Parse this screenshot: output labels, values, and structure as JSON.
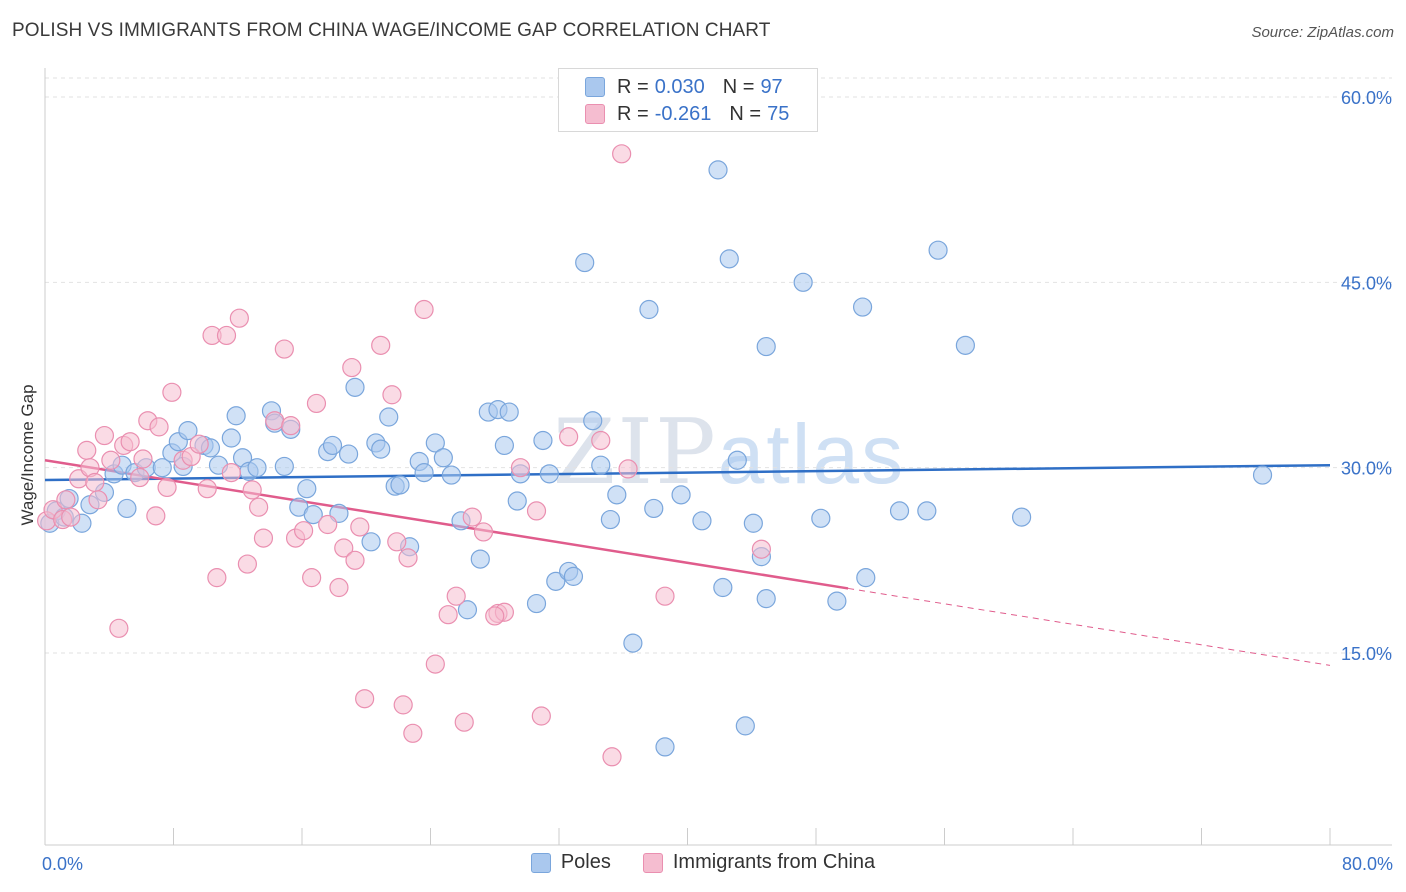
{
  "title": "POLISH VS IMMIGRANTS FROM CHINA WAGE/INCOME GAP CORRELATION CHART",
  "source": "Source: ZipAtlas.com",
  "watermark": {
    "part1": "ZIP",
    "part2": "atlas"
  },
  "legend_top": [
    {
      "r_label": "R =",
      "r_value": "0.030",
      "n_label": "N =",
      "n_value": "97"
    },
    {
      "r_label": "R =",
      "r_value": "-0.261",
      "n_label": "N =",
      "n_value": "75"
    }
  ],
  "legend_bottom": [
    "Poles",
    "Immigrants from China"
  ],
  "colors": {
    "blue_fill": "#aac8ee",
    "blue_stroke": "#7aa6dc",
    "blue_line": "#2f6fc6",
    "pink_fill": "#f5bdd0",
    "pink_stroke": "#ea8fb0",
    "pink_line": "#e05c8c",
    "axis_text": "#3a72c8",
    "grid": "#e2e2e2"
  },
  "chart_data": {
    "type": "scatter",
    "title": "POLISH VS IMMIGRANTS FROM CHINA WAGE/INCOME GAP CORRELATION CHART",
    "xlabel": "",
    "ylabel": "Wage/Income Gap",
    "xlim": [
      0,
      80
    ],
    "ylim": [
      0,
      62
    ],
    "x_tick_labels": [
      "0.0%",
      "80.0%"
    ],
    "y_ticks": [
      15,
      30,
      45,
      60
    ],
    "y_tick_labels": [
      "15.0%",
      "30.0%",
      "45.0%",
      "60.0%"
    ],
    "legend_position": "top-center",
    "series": [
      {
        "name": "Poles",
        "r": 0.03,
        "n": 97,
        "trend": {
          "x": [
            0,
            80
          ],
          "y": [
            29.0,
            30.2
          ],
          "solid_until": 80
        },
        "points": [
          [
            0.3,
            25.5
          ],
          [
            0.7,
            26.5
          ],
          [
            1.2,
            26.0
          ],
          [
            1.5,
            27.5
          ],
          [
            2.3,
            25.5
          ],
          [
            2.8,
            27
          ],
          [
            3.7,
            28
          ],
          [
            4.3,
            29.5
          ],
          [
            4.8,
            30.2
          ],
          [
            5.1,
            26.7
          ],
          [
            5.6,
            29.6
          ],
          [
            6.3,
            30
          ],
          [
            7.3,
            30
          ],
          [
            7.9,
            31.2
          ],
          [
            8.3,
            32.1
          ],
          [
            8.9,
            33
          ],
          [
            8.6,
            30.1
          ],
          [
            9.9,
            31.8
          ],
          [
            10.3,
            31.6
          ],
          [
            10.8,
            30.2
          ],
          [
            11.6,
            32.4
          ],
          [
            11.9,
            34.2
          ],
          [
            12.3,
            30.8
          ],
          [
            12.7,
            29.7
          ],
          [
            13.2,
            30
          ],
          [
            14.1,
            34.6
          ],
          [
            14.3,
            33.6
          ],
          [
            14.9,
            30.1
          ],
          [
            15.3,
            33.1
          ],
          [
            15.8,
            26.8
          ],
          [
            16.3,
            28.3
          ],
          [
            16.7,
            26.2
          ],
          [
            17.6,
            31.3
          ],
          [
            17.9,
            31.8
          ],
          [
            18.3,
            26.3
          ],
          [
            18.9,
            31.1
          ],
          [
            19.3,
            36.5
          ],
          [
            20.3,
            24
          ],
          [
            20.6,
            32.0
          ],
          [
            20.9,
            31.5
          ],
          [
            21.4,
            34.1
          ],
          [
            21.8,
            28.5
          ],
          [
            22.1,
            28.6
          ],
          [
            22.7,
            23.6
          ],
          [
            23.3,
            30.5
          ],
          [
            23.6,
            29.6
          ],
          [
            24.3,
            32.0
          ],
          [
            24.8,
            30.8
          ],
          [
            25.3,
            29.4
          ],
          [
            25.9,
            25.7
          ],
          [
            26.3,
            18.5
          ],
          [
            27.1,
            22.6
          ],
          [
            27.6,
            34.5
          ],
          [
            28.2,
            34.7
          ],
          [
            28.6,
            31.8
          ],
          [
            28.9,
            34.5
          ],
          [
            29.4,
            27.3
          ],
          [
            29.6,
            29.5
          ],
          [
            30.6,
            19.0
          ],
          [
            31.0,
            32.2
          ],
          [
            31.4,
            29.5
          ],
          [
            31.8,
            20.8
          ],
          [
            32.6,
            21.6
          ],
          [
            32.9,
            21.2
          ],
          [
            33.6,
            46.6
          ],
          [
            34.1,
            33.8
          ],
          [
            34.6,
            30.2
          ],
          [
            35.2,
            25.8
          ],
          [
            35.6,
            27.8
          ],
          [
            36.6,
            15.8
          ],
          [
            37.6,
            42.8
          ],
          [
            37.9,
            26.7
          ],
          [
            38.6,
            7.4
          ],
          [
            39.6,
            27.8
          ],
          [
            40.9,
            25.7
          ],
          [
            41.9,
            54.1
          ],
          [
            42.2,
            20.3
          ],
          [
            42.6,
            46.9
          ],
          [
            43.1,
            30.6
          ],
          [
            43.6,
            9.1
          ],
          [
            44.1,
            25.5
          ],
          [
            44.6,
            22.8
          ],
          [
            44.9,
            19.4
          ],
          [
            44.9,
            39.8
          ],
          [
            47.2,
            45.0
          ],
          [
            48.3,
            25.9
          ],
          [
            49.3,
            19.2
          ],
          [
            50.9,
            43.0
          ],
          [
            51.1,
            21.1
          ],
          [
            53.2,
            26.5
          ],
          [
            54.9,
            26.5
          ],
          [
            55.6,
            47.6
          ],
          [
            57.3,
            39.9
          ],
          [
            60.8,
            26.0
          ],
          [
            75.8,
            29.4
          ]
        ]
      },
      {
        "name": "Immigrants from China",
        "r": -0.261,
        "n": 75,
        "trend": {
          "x": [
            0,
            80
          ],
          "y": [
            30.6,
            14.0
          ],
          "solid_until": 50
        },
        "points": [
          [
            0.1,
            25.7
          ],
          [
            0.5,
            26.6
          ],
          [
            1.1,
            25.8
          ],
          [
            1.3,
            27.4
          ],
          [
            1.6,
            26.0
          ],
          [
            2.1,
            29.1
          ],
          [
            2.6,
            31.4
          ],
          [
            2.8,
            30.0
          ],
          [
            3.1,
            28.8
          ],
          [
            3.3,
            27.4
          ],
          [
            3.7,
            32.6
          ],
          [
            4.1,
            30.6
          ],
          [
            4.6,
            17.0
          ],
          [
            4.9,
            31.8
          ],
          [
            5.3,
            32.1
          ],
          [
            5.9,
            29.2
          ],
          [
            6.1,
            30.7
          ],
          [
            6.4,
            33.8
          ],
          [
            6.9,
            26.1
          ],
          [
            7.1,
            33.3
          ],
          [
            7.6,
            28.4
          ],
          [
            7.9,
            36.1
          ],
          [
            8.6,
            30.6
          ],
          [
            9.1,
            30.9
          ],
          [
            9.6,
            31.9
          ],
          [
            10.1,
            28.3
          ],
          [
            10.4,
            40.7
          ],
          [
            10.7,
            21.1
          ],
          [
            11.3,
            40.7
          ],
          [
            11.6,
            29.6
          ],
          [
            12.1,
            42.1
          ],
          [
            12.6,
            22.2
          ],
          [
            12.9,
            28.2
          ],
          [
            13.3,
            26.8
          ],
          [
            13.6,
            24.3
          ],
          [
            14.3,
            33.8
          ],
          [
            14.9,
            39.6
          ],
          [
            15.3,
            33.4
          ],
          [
            15.6,
            24.3
          ],
          [
            16.1,
            24.9
          ],
          [
            16.6,
            21.1
          ],
          [
            16.9,
            35.2
          ],
          [
            17.6,
            25.4
          ],
          [
            18.3,
            20.3
          ],
          [
            18.6,
            23.5
          ],
          [
            19.1,
            38.1
          ],
          [
            19.3,
            22.5
          ],
          [
            19.6,
            25.2
          ],
          [
            19.9,
            11.3
          ],
          [
            20.9,
            39.9
          ],
          [
            21.6,
            35.9
          ],
          [
            21.9,
            24.0
          ],
          [
            22.3,
            10.8
          ],
          [
            22.6,
            22.7
          ],
          [
            22.9,
            8.5
          ],
          [
            23.6,
            42.8
          ],
          [
            24.3,
            14.1
          ],
          [
            25.1,
            18.1
          ],
          [
            25.6,
            19.6
          ],
          [
            26.1,
            9.4
          ],
          [
            26.6,
            26.0
          ],
          [
            27.3,
            24.8
          ],
          [
            28.2,
            18.2
          ],
          [
            28.6,
            18.3
          ],
          [
            29.6,
            30.0
          ],
          [
            30.6,
            26.5
          ],
          [
            30.9,
            9.9
          ],
          [
            32.6,
            32.5
          ],
          [
            34.6,
            32.2
          ],
          [
            35.3,
            6.6
          ],
          [
            35.9,
            55.4
          ],
          [
            36.3,
            29.9
          ],
          [
            38.6,
            19.6
          ],
          [
            44.6,
            23.4
          ],
          [
            28.0,
            18.0
          ]
        ]
      }
    ]
  }
}
